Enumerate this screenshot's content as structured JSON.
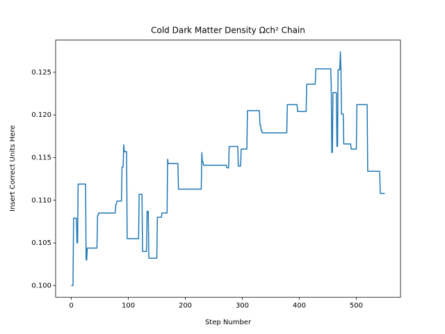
{
  "chart_data": {
    "type": "line",
    "title": "Cold Dark Matter Density Ωch² Chain",
    "xlabel": "Step Number",
    "ylabel": "Insert Correct Units Here",
    "x": [
      0,
      3,
      4,
      9,
      10,
      11,
      12,
      25,
      26,
      27,
      28,
      45,
      46,
      47,
      48,
      77,
      78,
      79,
      80,
      88,
      89,
      91,
      92,
      93,
      97,
      98,
      118,
      119,
      124,
      125,
      132,
      133,
      135,
      136,
      150,
      151,
      158,
      159,
      168,
      169,
      170,
      187,
      188,
      228,
      229,
      230,
      231,
      232,
      272,
      273,
      276,
      277,
      292,
      293,
      297,
      298,
      308,
      309,
      330,
      331,
      332,
      333,
      334,
      335,
      378,
      379,
      396,
      397,
      412,
      413,
      428,
      429,
      455,
      456,
      457,
      458,
      459,
      465,
      466,
      467,
      468,
      471,
      472,
      473,
      474,
      477,
      478,
      490,
      491,
      500,
      501,
      519,
      520,
      541,
      542,
      550
    ],
    "series": [
      {
        "name": "Ωch²",
        "color": "#1f77b4",
        "values": [
          0.1,
          0.1,
          0.1079,
          0.1079,
          0.105,
          0.105,
          0.1119,
          0.1119,
          0.103,
          0.103,
          0.1044,
          0.1044,
          0.1082,
          0.1082,
          0.1085,
          0.1085,
          0.1095,
          0.1095,
          0.1099,
          0.1099,
          0.1139,
          0.1139,
          0.1165,
          0.1157,
          0.1157,
          0.1055,
          0.1055,
          0.1107,
          0.1107,
          0.104,
          0.104,
          0.1087,
          0.1087,
          0.1032,
          0.1032,
          0.108,
          0.108,
          0.1085,
          0.1085,
          0.1148,
          0.1143,
          0.1143,
          0.1113,
          0.1113,
          0.1156,
          0.1145,
          0.1145,
          0.1141,
          0.1141,
          0.1138,
          0.1138,
          0.1163,
          0.1163,
          0.114,
          0.114,
          0.116,
          0.116,
          0.1205,
          0.1205,
          0.1188,
          0.1188,
          0.1182,
          0.1182,
          0.1179,
          0.1179,
          0.1212,
          0.1212,
          0.1204,
          0.1204,
          0.1236,
          0.1236,
          0.1254,
          0.1254,
          0.1236,
          0.1156,
          0.1156,
          0.1226,
          0.1226,
          0.1163,
          0.1163,
          0.1253,
          0.1253,
          0.1274,
          0.1253,
          0.1201,
          0.1201,
          0.1166,
          0.1166,
          0.116,
          0.116,
          0.1212,
          0.1212,
          0.1134,
          0.1134,
          0.1108,
          0.1108
        ]
      }
    ],
    "xlim": [
      -27.5,
      577.5
    ],
    "xticks": [
      0,
      100,
      200,
      300,
      400,
      500
    ],
    "ylim": [
      0.09863,
      0.12877
    ],
    "yticks": [
      {
        "value": 0.1,
        "label": "0.100"
      },
      {
        "value": 0.105,
        "label": "0.105"
      },
      {
        "value": 0.11,
        "label": "0.110"
      },
      {
        "value": 0.115,
        "label": "0.115"
      },
      {
        "value": 0.12,
        "label": "0.120"
      },
      {
        "value": 0.125,
        "label": "0.125"
      }
    ],
    "grid": false
  }
}
